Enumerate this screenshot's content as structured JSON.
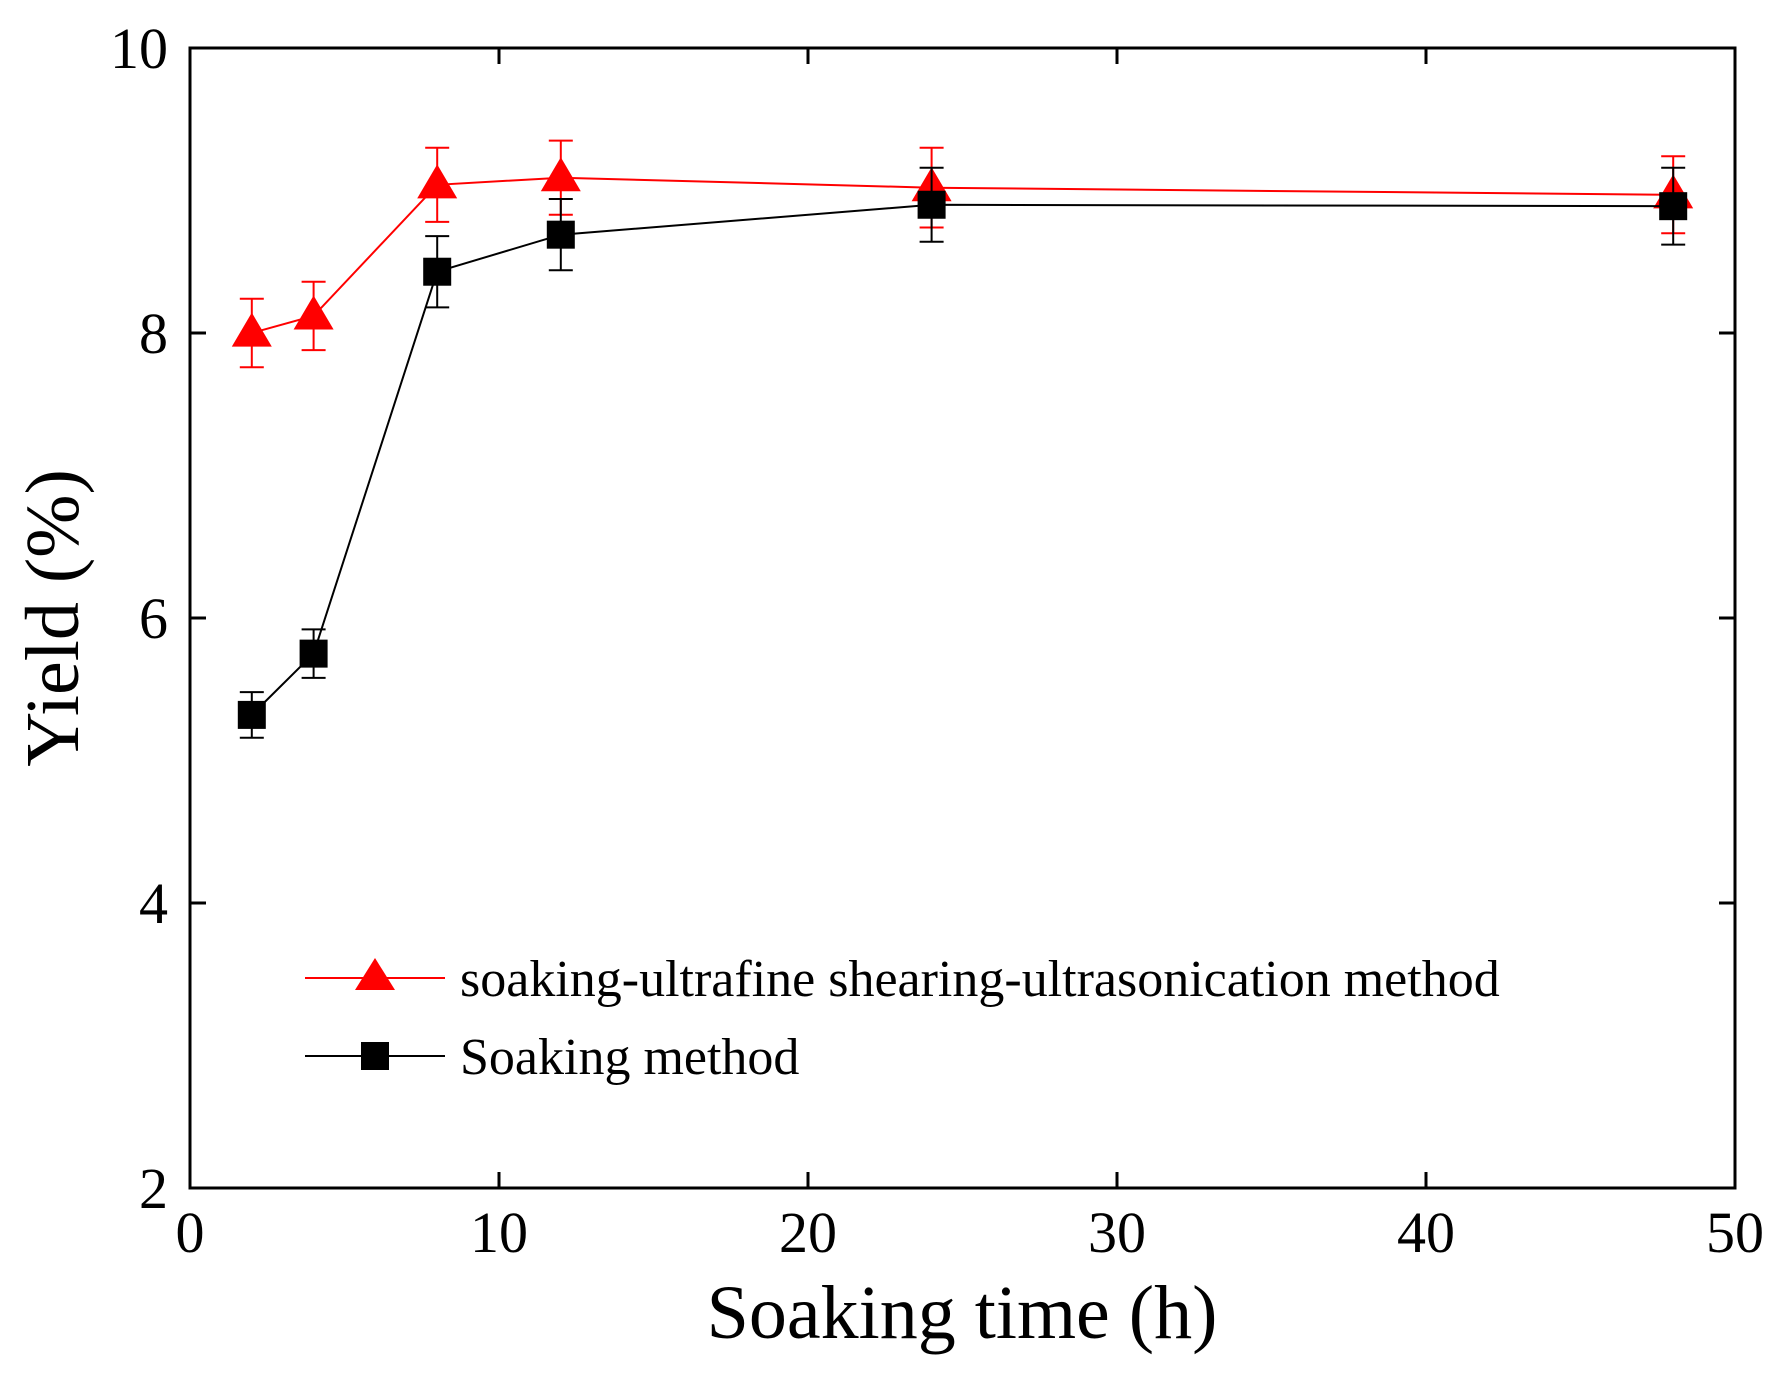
{
  "chart_data": {
    "type": "line",
    "title": "",
    "xlabel": "Soaking time (h)",
    "ylabel": "Yield (%)",
    "xlim": [
      0,
      50
    ],
    "ylim": [
      2,
      10
    ],
    "xticks": [
      0,
      10,
      20,
      30,
      40,
      50
    ],
    "yticks": [
      2,
      4,
      6,
      8,
      10
    ],
    "xtick_labels": [
      "0",
      "10",
      "20",
      "30",
      "40",
      "50"
    ],
    "ytick_labels": [
      "2",
      "4",
      "6",
      "8",
      "10"
    ],
    "grid": false,
    "legend_position": "lower-left",
    "series": [
      {
        "name": "soaking-ultrafine shearing-ultrasonication method",
        "color": "#ff0000",
        "marker": "triangle",
        "x": [
          2,
          4,
          8,
          12,
          24,
          48
        ],
        "y": [
          8.0,
          8.12,
          9.04,
          9.09,
          9.02,
          8.97
        ],
        "error": [
          0.24,
          0.24,
          0.26,
          0.26,
          0.28,
          0.27
        ]
      },
      {
        "name": "Soaking method",
        "color": "#000000",
        "marker": "square",
        "x": [
          2,
          4,
          8,
          12,
          24,
          48
        ],
        "y": [
          5.32,
          5.75,
          8.43,
          8.69,
          8.9,
          8.89
        ],
        "error": [
          0.16,
          0.17,
          0.25,
          0.25,
          0.26,
          0.27
        ]
      }
    ]
  }
}
